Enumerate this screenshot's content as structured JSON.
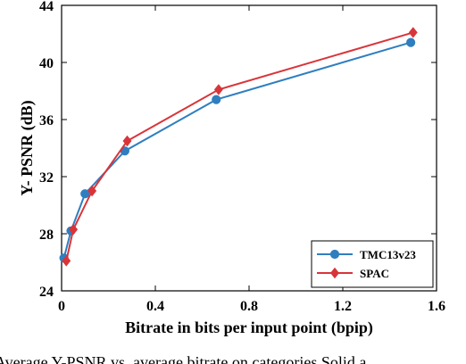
{
  "chart_data": {
    "type": "line",
    "title": "",
    "xlabel": "Bitrate in bits per input point (bpip)",
    "ylabel": "Y- PSNR (dB)",
    "xlim": [
      0,
      1.6
    ],
    "ylim": [
      24,
      44
    ],
    "xticks": [
      0,
      0.4,
      0.8,
      1.2,
      1.6
    ],
    "xtick_labels": [
      "0",
      "0.4",
      "0.8",
      "1.2",
      "1.6"
    ],
    "yticks": [
      24,
      28,
      32,
      36,
      40,
      44
    ],
    "ytick_labels": [
      "24",
      "28",
      "32",
      "36",
      "40",
      "44"
    ],
    "grid": false,
    "legend_position": "bottom-right",
    "series": [
      {
        "name": "TMC13v23",
        "color": "#2f7ec0",
        "marker": "circle",
        "x": [
          0.01,
          0.04,
          0.1,
          0.27,
          0.66,
          1.49
        ],
        "y": [
          26.3,
          28.2,
          30.8,
          33.8,
          37.4,
          41.4
        ]
      },
      {
        "name": "SPAC",
        "color": "#d8353a",
        "marker": "diamond",
        "x": [
          0.02,
          0.05,
          0.13,
          0.28,
          0.67,
          1.5
        ],
        "y": [
          26.1,
          28.3,
          31.0,
          34.5,
          38.1,
          42.1
        ]
      }
    ]
  },
  "caption": "Average Y-PSNR vs. average bitrate on categories Solid a"
}
